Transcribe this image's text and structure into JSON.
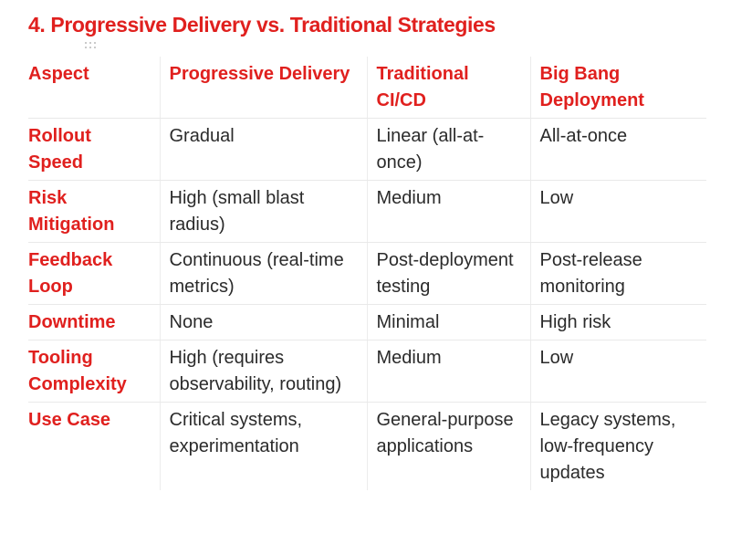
{
  "slide": {
    "title": "4. Progressive Delivery vs. Traditional Strategies"
  },
  "table": {
    "headers": [
      "Aspect",
      "Progressive Delivery",
      "Traditional CI/CD",
      "Big Bang Deployment"
    ],
    "rows": [
      [
        "Rollout Speed",
        "Gradual",
        "Linear (all-at-once)",
        "All-at-once"
      ],
      [
        "Risk Mitigation",
        "High (small blast radius)",
        "Medium",
        "Low"
      ],
      [
        "Feedback Loop",
        "Continuous (real-time metrics)",
        "Post-deployment testing",
        "Post-release monitoring"
      ],
      [
        "Downtime",
        "None",
        "Minimal",
        "High risk"
      ],
      [
        "Tooling Complexity",
        "High (requires observability, routing)",
        "Medium",
        "Low"
      ],
      [
        "Use Case",
        "Critical systems, experimentation",
        "General-purpose applications",
        "Legacy systems, low-frequency updates"
      ]
    ]
  },
  "colors": {
    "accent": "#e0201e",
    "body_text": "#2b2b2b",
    "divider": "#e9e9e9"
  },
  "icons": {
    "grip": "drag-handle-icon"
  }
}
